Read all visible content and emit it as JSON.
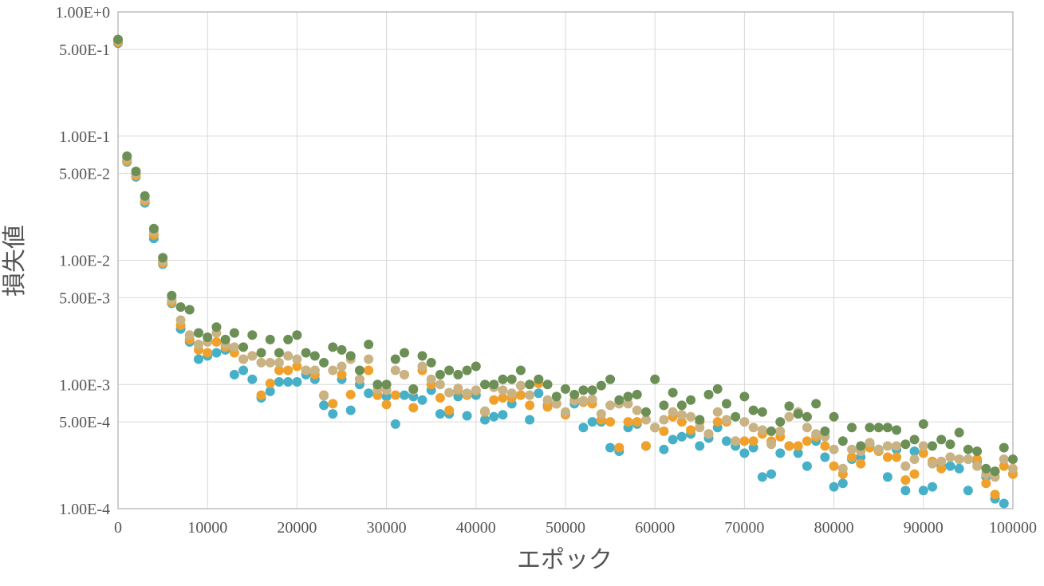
{
  "chart_data": {
    "type": "scatter",
    "xlabel": "エポック",
    "ylabel": "損失値",
    "xlim": [
      0,
      100000
    ],
    "ylim": [
      0.0001,
      1
    ],
    "yscale": "log",
    "grid": true,
    "legend": "none",
    "x_ticks": [
      0,
      10000,
      20000,
      30000,
      40000,
      50000,
      60000,
      70000,
      80000,
      90000,
      100000
    ],
    "x_tick_labels": [
      "0",
      "10000",
      "20000",
      "30000",
      "40000",
      "50000",
      "60000",
      "70000",
      "80000",
      "90000",
      "100000"
    ],
    "y_ticks": [
      1,
      0.5,
      0.1,
      0.05,
      0.01,
      0.005,
      0.001,
      0.0005,
      0.0001
    ],
    "y_tick_labels": [
      "1.00E+0",
      "5.00E-1",
      "1.00E-1",
      "5.00E-2",
      "1.00E-2",
      "5.00E-3",
      "1.00E-3",
      "5.00E-4",
      "1.00E-4"
    ],
    "colors": [
      "#45b0c8",
      "#f0a12c",
      "#c9b283",
      "#6c8f55"
    ],
    "x": [
      0,
      1000,
      2000,
      3000,
      4000,
      5000,
      6000,
      7000,
      8000,
      9000,
      10000,
      11000,
      12000,
      13000,
      14000,
      15000,
      16000,
      17000,
      18000,
      19000,
      20000,
      21000,
      22000,
      23000,
      24000,
      25000,
      26000,
      27000,
      28000,
      29000,
      30000,
      31000,
      32000,
      33000,
      34000,
      35000,
      36000,
      37000,
      38000,
      39000,
      40000,
      41000,
      42000,
      43000,
      44000,
      45000,
      46000,
      47000,
      48000,
      49000,
      50000,
      51000,
      52000,
      53000,
      54000,
      55000,
      56000,
      57000,
      58000,
      59000,
      60000,
      61000,
      62000,
      63000,
      64000,
      65000,
      66000,
      67000,
      68000,
      69000,
      70000,
      71000,
      72000,
      73000,
      74000,
      75000,
      76000,
      77000,
      78000,
      79000,
      80000,
      81000,
      82000,
      83000,
      84000,
      85000,
      86000,
      87000,
      88000,
      89000,
      90000,
      91000,
      92000,
      93000,
      94000,
      95000,
      96000,
      97000,
      98000,
      99000,
      100000
    ],
    "series": [
      {
        "values": [
          0.56,
          0.062,
          0.047,
          0.029,
          0.015,
          0.0093,
          0.0045,
          0.0028,
          0.0022,
          0.0016,
          0.0017,
          0.0018,
          0.0019,
          0.0012,
          0.0013,
          0.0011,
          0.00078,
          0.00088,
          0.00105,
          0.00105,
          0.00105,
          0.0012,
          0.0011,
          0.00068,
          0.00058,
          0.0011,
          0.00062,
          0.001,
          0.00085,
          0.00082,
          0.0008,
          0.00048,
          0.00082,
          0.0008,
          0.00075,
          0.0009,
          0.00058,
          0.00058,
          0.0008,
          0.00056,
          0.00082,
          0.00052,
          0.00055,
          0.00057,
          0.0007,
          0.00082,
          0.00052,
          0.00085,
          0.00068,
          0.0007,
          0.00058,
          0.0007,
          0.00045,
          0.0005,
          0.0005,
          0.00031,
          0.00029,
          0.00045,
          0.00048,
          0.00032,
          0.00045,
          0.0003,
          0.00036,
          0.00038,
          0.0004,
          0.00032,
          0.00037,
          0.00045,
          0.00035,
          0.00032,
          0.00028,
          0.00031,
          0.00018,
          0.00019,
          0.00028,
          0.00032,
          0.00028,
          0.00022,
          0.00035,
          0.00026,
          0.00015,
          0.00016,
          0.00025,
          0.00026,
          0.00033,
          0.0003,
          0.00018,
          0.0003,
          0.00014,
          0.00029,
          0.00014,
          0.00015,
          0.00022,
          0.00022,
          0.00021,
          0.00014,
          0.00024,
          0.00018,
          0.00012,
          0.00011,
          0.00019
        ]
      },
      {
        "values": [
          0.57,
          0.063,
          0.048,
          0.03,
          0.016,
          0.0095,
          0.0046,
          0.003,
          0.0023,
          0.0019,
          0.0018,
          0.0022,
          0.002,
          0.0018,
          0.0016,
          0.0017,
          0.00082,
          0.00102,
          0.0013,
          0.0013,
          0.0014,
          0.0013,
          0.0012,
          0.00082,
          0.0007,
          0.0012,
          0.00083,
          0.0011,
          0.0013,
          0.00082,
          0.00069,
          0.00082,
          0.0012,
          0.00065,
          0.0013,
          0.001,
          0.00078,
          0.00062,
          0.0009,
          0.00082,
          0.00089,
          0.0006,
          0.00075,
          0.00078,
          0.00078,
          0.00082,
          0.00068,
          0.00102,
          0.00066,
          0.0007,
          0.00057,
          0.00075,
          0.00072,
          0.0007,
          0.00052,
          0.0005,
          0.00031,
          0.0005,
          0.0005,
          0.00032,
          0.00045,
          0.00042,
          0.00055,
          0.0005,
          0.00043,
          0.0005,
          0.0004,
          0.0005,
          0.0005,
          0.00035,
          0.00035,
          0.00035,
          0.0004,
          0.00035,
          0.00038,
          0.00032,
          0.00032,
          0.00035,
          0.00038,
          0.00032,
          0.00022,
          0.00019,
          0.00026,
          0.00023,
          0.00031,
          0.00029,
          0.00026,
          0.00026,
          0.00017,
          0.00019,
          0.00028,
          0.00024,
          0.00021,
          0.00026,
          0.00025,
          0.00025,
          0.00025,
          0.00016,
          0.00013,
          0.00022,
          0.00019
        ]
      },
      {
        "values": [
          0.59,
          0.066,
          0.05,
          0.031,
          0.017,
          0.0098,
          0.0048,
          0.0033,
          0.0025,
          0.0021,
          0.0022,
          0.0026,
          0.0021,
          0.002,
          0.0016,
          0.0017,
          0.0015,
          0.0015,
          0.0015,
          0.0017,
          0.0016,
          0.0013,
          0.0013,
          0.00081,
          0.0013,
          0.0014,
          0.0016,
          0.0011,
          0.0016,
          0.00092,
          0.0009,
          0.0013,
          0.0012,
          0.0009,
          0.0014,
          0.0011,
          0.001,
          0.00086,
          0.00093,
          0.00085,
          0.0009,
          0.00061,
          0.00095,
          0.0009,
          0.00085,
          0.00098,
          0.00082,
          0.0011,
          0.00075,
          0.0007,
          0.0006,
          0.00074,
          0.00074,
          0.00076,
          0.00058,
          0.00068,
          0.0007,
          0.0007,
          0.00062,
          0.00052,
          0.00045,
          0.00052,
          0.0006,
          0.00057,
          0.00055,
          0.00045,
          0.0004,
          0.0006,
          0.00052,
          0.00035,
          0.0005,
          0.00045,
          0.00043,
          0.00033,
          0.00042,
          0.00055,
          0.0006,
          0.00045,
          0.0004,
          0.00038,
          0.0003,
          0.00021,
          0.0003,
          0.00029,
          0.00034,
          0.0003,
          0.00032,
          0.00032,
          0.00022,
          0.00025,
          0.00032,
          0.00023,
          0.00024,
          0.00026,
          0.00025,
          0.00025,
          0.00022,
          0.00019,
          0.00018,
          0.00025,
          0.00021
        ]
      },
      {
        "values": [
          0.6,
          0.069,
          0.052,
          0.033,
          0.018,
          0.0105,
          0.0052,
          0.0042,
          0.004,
          0.0026,
          0.0024,
          0.0029,
          0.0023,
          0.0026,
          0.002,
          0.0025,
          0.0018,
          0.0023,
          0.0018,
          0.0023,
          0.0025,
          0.0018,
          0.0017,
          0.0015,
          0.002,
          0.0019,
          0.0017,
          0.0013,
          0.0021,
          0.001,
          0.001,
          0.0016,
          0.0018,
          0.00092,
          0.0017,
          0.0015,
          0.0012,
          0.0013,
          0.0012,
          0.0013,
          0.0014,
          0.001,
          0.001,
          0.0011,
          0.0011,
          0.0013,
          0.001,
          0.0011,
          0.001,
          0.0008,
          0.00092,
          0.00083,
          0.0009,
          0.0009,
          0.00098,
          0.0011,
          0.00075,
          0.0008,
          0.00083,
          0.0006,
          0.0011,
          0.00068,
          0.00086,
          0.00068,
          0.00075,
          0.00052,
          0.00083,
          0.00092,
          0.0007,
          0.00055,
          0.0008,
          0.00062,
          0.0006,
          0.00042,
          0.0005,
          0.00067,
          0.00058,
          0.00055,
          0.0007,
          0.00042,
          0.00055,
          0.00035,
          0.00045,
          0.00032,
          0.00045,
          0.00045,
          0.00045,
          0.00043,
          0.00033,
          0.00036,
          0.00048,
          0.00032,
          0.00036,
          0.00033,
          0.00041,
          0.0003,
          0.00029,
          0.00021,
          0.0002,
          0.00031,
          0.00025
        ]
      }
    ]
  }
}
